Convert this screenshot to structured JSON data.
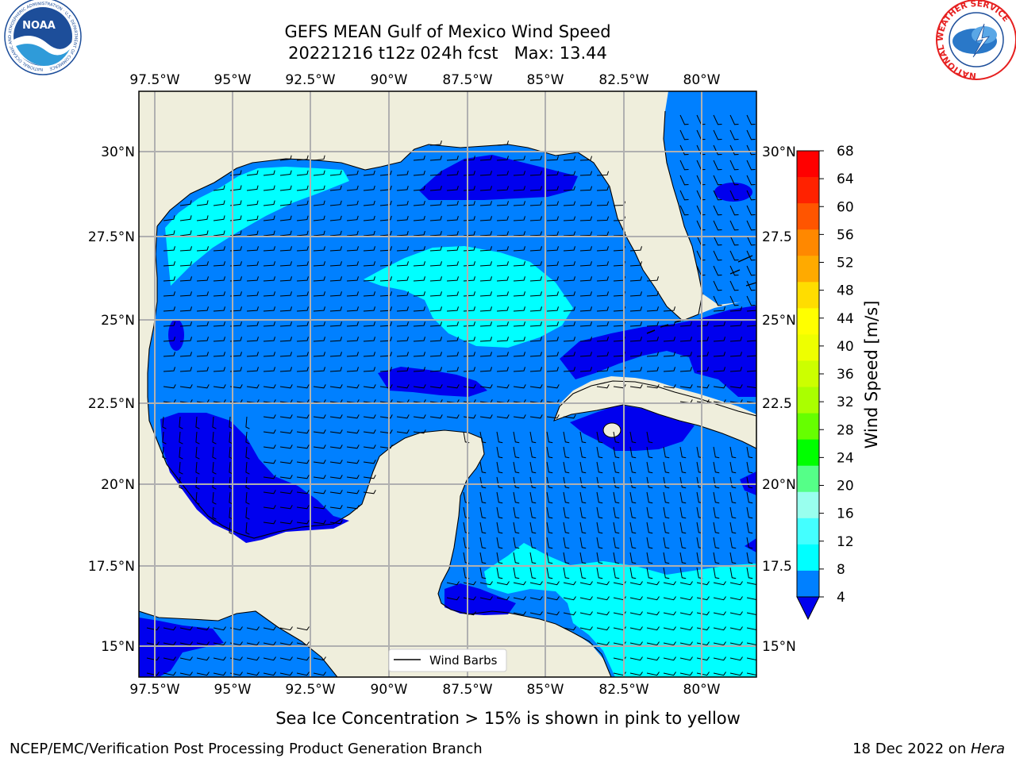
{
  "header": {
    "title_line1": "GEFS MEAN Gulf of Mexico Wind Speed",
    "title_line2": "20221216 t12z 024h fcst   Max: 13.44"
  },
  "logos": {
    "left": {
      "text": "NOAA",
      "ring_text": "NATIONAL OCEANIC AND ATMOSPHERIC ADMINISTRATION · U.S. DEPARTMENT OF COMMERCE"
    },
    "right": {
      "ring_text": "NATIONAL WEATHER SERVICE"
    }
  },
  "map": {
    "lon_labels": [
      "97.5°W",
      "95°W",
      "92.5°W",
      "90°W",
      "87.5°W",
      "85°W",
      "82.5°W",
      "80°W"
    ],
    "lat_labels": [
      "30°N",
      "27.5°N",
      "25°N",
      "22.5°N",
      "20°N",
      "17.5°N",
      "15°N"
    ],
    "right_lat_labels": [
      "30°N",
      "27.5",
      "25°N",
      "22.5",
      "20°N",
      "17.5",
      "15°N"
    ],
    "legend_label": "Wind Barbs",
    "land_color": "#efeedc",
    "colors": {
      "c4_8": "#0080ff",
      "c8_12": "#00ffff",
      "c12_16": "#40ffff",
      "lt4": "#0000ee"
    }
  },
  "colorbar": {
    "label": "Wind Speed [m/s]",
    "ticks": [
      "68",
      "64",
      "60",
      "56",
      "52",
      "48",
      "44",
      "40",
      "36",
      "32",
      "28",
      "24",
      "20",
      "16",
      "12",
      "8",
      "4"
    ],
    "colors_top_to_bottom": [
      "#ff0000",
      "#ff2200",
      "#ff5500",
      "#ff8800",
      "#ffaa00",
      "#ffdd00",
      "#ffff00",
      "#eeff00",
      "#ccff00",
      "#aaff00",
      "#66ff00",
      "#00ff00",
      "#55ff88",
      "#99ffee",
      "#44ffff",
      "#00ffff",
      "#0080ff"
    ],
    "under_color": "#0000ee"
  },
  "footer": {
    "note": "Sea Ice Concentration > 15% is shown in pink to yellow",
    "credit": "NCEP/EMC/Verification Post Processing Product Generation Branch",
    "date_prefix": "18 Dec 2022 on ",
    "host": "Hera"
  }
}
